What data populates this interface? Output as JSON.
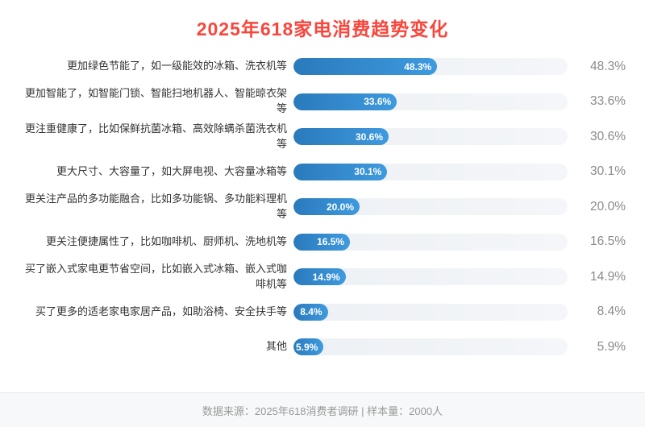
{
  "title": "2025年618家电消费趋势变化",
  "colors": {
    "title": "#f9463c",
    "bar_gradient_start": "#2a7abc",
    "bar_gradient_end": "#3e9ade",
    "bar_track": "#eff1f5",
    "category_text": "#333333",
    "value_text": "#8a8a8a",
    "footer_text": "#999999",
    "footer_bg": "#f7f8f9"
  },
  "chart_data": {
    "type": "bar",
    "orientation": "horizontal",
    "title": "2025年618家电消费趋势变化",
    "xlabel": "",
    "ylabel": "",
    "xlim": [
      0,
      100
    ],
    "grid": false,
    "legend": false,
    "categories": [
      "更加绿色节能了，如一级能效的冰箱、洗衣机等",
      "更加智能了，如智能门锁、智能扫地机器人、智能晾衣架等",
      "更注重健康了，比如保鲜抗菌冰箱、高效除螨杀菌洗衣机等",
      "更大尺寸、大容量了，如大屏电视、大容量冰箱等",
      "更关注产品的多功能融合，比如多功能锅、多功能料理机等",
      "更关注便捷属性了，比如咖啡机、厨师机、洗地机等",
      "买了嵌入式家电更节省空间，比如嵌入式冰箱、嵌入式咖啡机等",
      "买了更多的适老家电家居产品，如助浴椅、安全扶手等",
      "其他"
    ],
    "values": [
      48.3,
      33.6,
      30.6,
      30.1,
      20.0,
      16.5,
      14.9,
      8.4,
      5.9
    ],
    "value_labels": [
      "48.3%",
      "33.6%",
      "30.6%",
      "30.1%",
      "20.0%",
      "16.5%",
      "14.9%",
      "8.4%",
      "5.9%"
    ]
  },
  "footer": {
    "text": "数据来源：2025年618消费者调研 | 样本量：2000人"
  }
}
